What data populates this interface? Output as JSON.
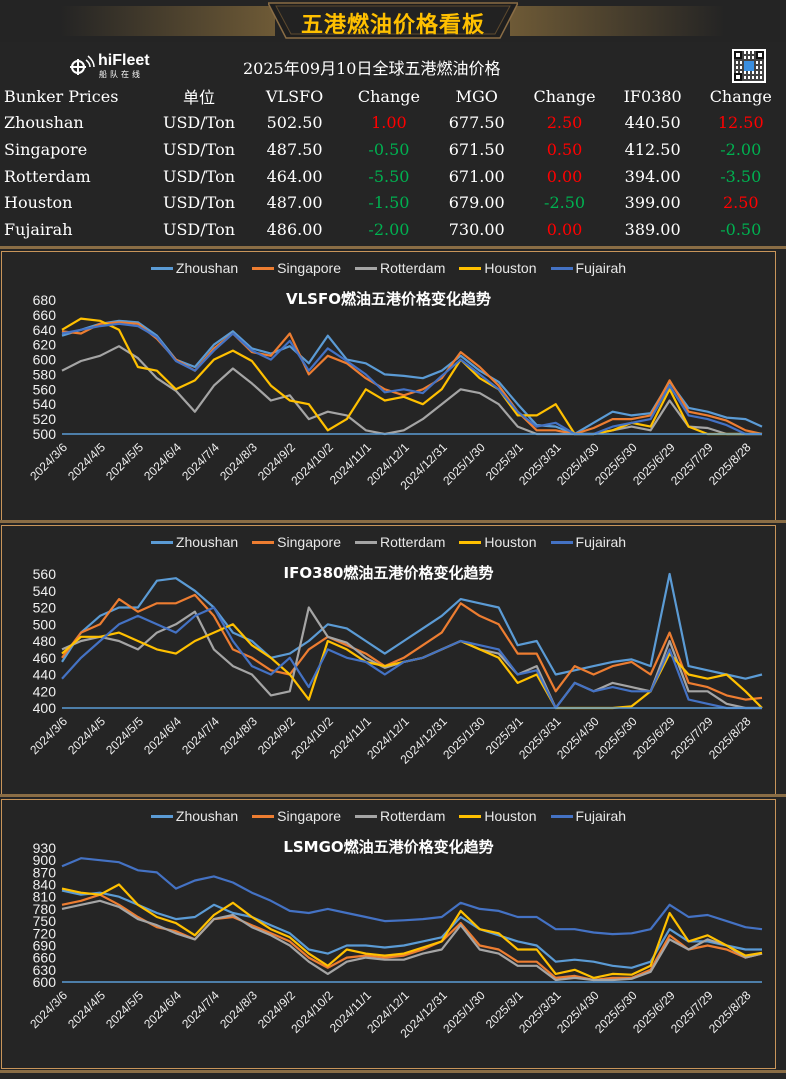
{
  "header": {
    "banner_title": "五港燃油价格看板",
    "logo_main": "hiFleet",
    "logo_sub": "船队在线",
    "date_title": "2025年09月10日全球五港燃油价格"
  },
  "price_table": {
    "headers": [
      "Bunker Prices",
      "单位",
      "VLSFO",
      "Change",
      "MGO",
      "Change",
      "IF0380",
      "Change"
    ],
    "rows": [
      {
        "port": "Zhoushan",
        "unit": "USD/Ton",
        "vlsfo": "502.50",
        "vlsfo_change": "1.00",
        "vlsfo_dir": "up",
        "mgo": "677.50",
        "mgo_change": "2.50",
        "mgo_dir": "up",
        "ifo380": "440.50",
        "ifo380_change": "12.50",
        "ifo380_dir": "up"
      },
      {
        "port": "Singapore",
        "unit": "USD/Ton",
        "vlsfo": "487.50",
        "vlsfo_change": "-0.50",
        "vlsfo_dir": "down",
        "mgo": "671.50",
        "mgo_change": "0.50",
        "mgo_dir": "up",
        "ifo380": "412.50",
        "ifo380_change": "-2.00",
        "ifo380_dir": "down"
      },
      {
        "port": "Rotterdam",
        "unit": "USD/Ton",
        "vlsfo": "464.00",
        "vlsfo_change": "-5.50",
        "vlsfo_dir": "down",
        "mgo": "671.00",
        "mgo_change": "0.00",
        "mgo_dir": "up",
        "ifo380": "394.00",
        "ifo380_change": "-3.50",
        "ifo380_dir": "down"
      },
      {
        "port": "Houston",
        "unit": "USD/Ton",
        "vlsfo": "487.00",
        "vlsfo_change": "-1.50",
        "vlsfo_dir": "down",
        "mgo": "679.00",
        "mgo_change": "-2.50",
        "mgo_dir": "down",
        "ifo380": "399.00",
        "ifo380_change": "2.50",
        "ifo380_dir": "up"
      },
      {
        "port": "Fujairah",
        "unit": "USD/Ton",
        "vlsfo": "486.00",
        "vlsfo_change": "-2.00",
        "vlsfo_dir": "down",
        "mgo": "730.00",
        "mgo_change": "0.00",
        "mgo_dir": "up",
        "ifo380": "389.00",
        "ifo380_change": "-0.50",
        "ifo380_dir": "down"
      }
    ]
  },
  "colors": {
    "Zhoushan": "#5b9bd5",
    "Singapore": "#ed7d31",
    "Rotterdam": "#a5a5a5",
    "Houston": "#ffc000",
    "Fujairah": "#4472c4",
    "up": "#ff0000",
    "down": "#00b050",
    "accent": "#ffc000",
    "border": "#c8955a"
  },
  "chart_data": [
    {
      "type": "line",
      "title": "VLSFO燃油五港价格变化趋势",
      "xlabel": "",
      "ylabel": "",
      "ylim": [
        500,
        680
      ],
      "yticks": [
        500,
        520,
        540,
        560,
        580,
        600,
        620,
        640,
        660,
        680
      ],
      "legend": "top",
      "grid": false,
      "x_unit": "days since 2024/3/6",
      "xlim": [
        0,
        553
      ],
      "xtick_days": [
        0,
        30,
        60,
        90,
        120,
        150,
        180,
        210,
        240,
        270,
        300,
        330,
        360,
        390,
        420,
        450,
        480,
        510,
        540
      ],
      "xtick_labels": [
        "2024/3/6",
        "2024/4/5",
        "2024/5/5",
        "2024/6/4",
        "2024/7/4",
        "2024/8/3",
        "2024/9/2",
        "2024/10/2",
        "2024/11/1",
        "2024/12/1",
        "2024/12/31",
        "2025/1/30",
        "2025/3/1",
        "2025/3/31",
        "2025/4/30",
        "2025/5/30",
        "2025/6/29",
        "2025/7/29",
        "2025/8/28"
      ],
      "x": [
        0,
        15,
        30,
        45,
        60,
        75,
        90,
        105,
        120,
        135,
        150,
        165,
        180,
        195,
        210,
        225,
        240,
        255,
        270,
        285,
        300,
        315,
        330,
        345,
        360,
        375,
        390,
        405,
        420,
        435,
        450,
        465,
        480,
        495,
        510,
        525,
        540,
        553
      ],
      "series": [
        {
          "name": "Zhoushan",
          "values": [
            632,
            640,
            648,
            652,
            650,
            632,
            600,
            590,
            620,
            638,
            615,
            608,
            618,
            595,
            632,
            600,
            595,
            580,
            578,
            575,
            585,
            605,
            585,
            570,
            540,
            512,
            510,
            500,
            515,
            530,
            525,
            528,
            570,
            535,
            530,
            522,
            520,
            510
          ]
        },
        {
          "name": "Singapore",
          "values": [
            638,
            635,
            648,
            650,
            648,
            628,
            600,
            585,
            615,
            635,
            610,
            605,
            635,
            580,
            605,
            595,
            575,
            560,
            552,
            560,
            575,
            610,
            590,
            565,
            530,
            505,
            505,
            500,
            508,
            520,
            520,
            525,
            572,
            530,
            525,
            518,
            505,
            500
          ]
        },
        {
          "name": "Rotterdam",
          "values": [
            585,
            598,
            605,
            618,
            602,
            575,
            558,
            530,
            565,
            588,
            568,
            545,
            552,
            520,
            530,
            525,
            505,
            500,
            505,
            520,
            540,
            560,
            555,
            540,
            510,
            500,
            500,
            500,
            500,
            505,
            510,
            505,
            545,
            510,
            508,
            500,
            500,
            500
          ]
        },
        {
          "name": "Houston",
          "values": [
            640,
            655,
            652,
            640,
            590,
            585,
            560,
            572,
            600,
            612,
            598,
            565,
            545,
            540,
            505,
            520,
            560,
            545,
            550,
            540,
            560,
            600,
            575,
            560,
            525,
            525,
            540,
            500,
            500,
            505,
            515,
            510,
            560,
            510,
            500,
            500,
            500,
            500
          ]
        },
        {
          "name": "Fujairah",
          "values": [
            635,
            640,
            645,
            648,
            645,
            630,
            598,
            585,
            612,
            635,
            612,
            600,
            625,
            585,
            615,
            598,
            580,
            556,
            560,
            555,
            578,
            600,
            580,
            560,
            530,
            510,
            515,
            500,
            500,
            510,
            515,
            520,
            565,
            525,
            520,
            512,
            500,
            500
          ]
        }
      ]
    },
    {
      "type": "line",
      "title": "IFO380燃油五港价格变化趋势",
      "xlabel": "",
      "ylabel": "",
      "ylim": [
        400,
        560
      ],
      "yticks": [
        400,
        420,
        440,
        460,
        480,
        500,
        520,
        540,
        560
      ],
      "legend": "top",
      "grid": false,
      "x_unit": "days since 2024/3/6",
      "xlim": [
        0,
        553
      ],
      "xtick_days": [
        0,
        30,
        60,
        90,
        120,
        150,
        180,
        210,
        240,
        270,
        300,
        330,
        360,
        390,
        420,
        450,
        480,
        510,
        540
      ],
      "xtick_labels": [
        "2024/3/6",
        "2024/4/5",
        "2024/5/5",
        "2024/6/4",
        "2024/7/4",
        "2024/8/3",
        "2024/9/2",
        "2024/10/2",
        "2024/11/1",
        "2024/12/1",
        "2024/12/31",
        "2025/1/30",
        "2025/3/1",
        "2025/3/31",
        "2025/4/30",
        "2025/5/30",
        "2025/6/29",
        "2025/7/29",
        "2025/8/28"
      ],
      "x": [
        0,
        15,
        30,
        45,
        60,
        75,
        90,
        105,
        120,
        135,
        150,
        165,
        180,
        195,
        210,
        225,
        240,
        255,
        270,
        285,
        300,
        315,
        330,
        345,
        360,
        375,
        390,
        405,
        420,
        435,
        450,
        465,
        480,
        495,
        510,
        525,
        540,
        553
      ],
      "series": [
        {
          "name": "Zhoushan",
          "values": [
            455,
            490,
            510,
            520,
            520,
            552,
            555,
            540,
            520,
            490,
            480,
            460,
            465,
            480,
            500,
            495,
            480,
            465,
            480,
            495,
            510,
            530,
            525,
            520,
            475,
            480,
            440,
            445,
            450,
            455,
            458,
            450,
            560,
            450,
            445,
            440,
            435,
            440
          ]
        },
        {
          "name": "Singapore",
          "values": [
            460,
            490,
            500,
            530,
            515,
            525,
            525,
            535,
            510,
            470,
            460,
            445,
            440,
            470,
            485,
            475,
            465,
            450,
            460,
            475,
            490,
            525,
            510,
            500,
            465,
            465,
            420,
            450,
            440,
            450,
            455,
            440,
            490,
            430,
            425,
            415,
            410,
            412
          ]
        },
        {
          "name": "Rotterdam",
          "values": [
            470,
            480,
            485,
            480,
            470,
            490,
            500,
            515,
            470,
            450,
            440,
            415,
            420,
            520,
            485,
            478,
            460,
            448,
            455,
            460,
            470,
            480,
            470,
            465,
            440,
            450,
            400,
            430,
            420,
            430,
            425,
            420,
            480,
            420,
            420,
            405,
            400,
            400
          ]
        },
        {
          "name": "Houston",
          "values": [
            465,
            485,
            485,
            490,
            480,
            470,
            465,
            480,
            490,
            500,
            475,
            460,
            440,
            410,
            480,
            470,
            455,
            450,
            455,
            460,
            470,
            480,
            470,
            460,
            430,
            440,
            400,
            400,
            400,
            400,
            402,
            420,
            465,
            440,
            435,
            440,
            420,
            400
          ]
        },
        {
          "name": "Fujairah",
          "values": [
            435,
            460,
            480,
            500,
            510,
            500,
            490,
            510,
            520,
            480,
            450,
            440,
            460,
            425,
            470,
            460,
            455,
            440,
            455,
            460,
            470,
            480,
            475,
            470,
            440,
            445,
            400,
            430,
            420,
            425,
            420,
            420,
            470,
            410,
            405,
            400,
            400,
            400
          ]
        }
      ]
    },
    {
      "type": "line",
      "title": "LSMGO燃油五港价格变化趋势",
      "xlabel": "",
      "ylabel": "",
      "ylim": [
        600,
        930
      ],
      "yticks": [
        600,
        630,
        660,
        690,
        720,
        750,
        780,
        810,
        840,
        870,
        900,
        930
      ],
      "legend": "top",
      "grid": false,
      "x_unit": "days since 2024/3/6",
      "xlim": [
        0,
        553
      ],
      "xtick_days": [
        0,
        30,
        60,
        90,
        120,
        150,
        180,
        210,
        240,
        270,
        300,
        330,
        360,
        390,
        420,
        450,
        480,
        510,
        540
      ],
      "xtick_labels": [
        "2024/3/6",
        "2024/4/5",
        "2024/5/5",
        "2024/6/4",
        "2024/7/4",
        "2024/8/3",
        "2024/9/2",
        "2024/10/2",
        "2024/11/1",
        "2024/12/1",
        "2024/12/31",
        "2025/1/30",
        "2025/3/1",
        "2025/3/31",
        "2025/4/30",
        "2025/5/30",
        "2025/6/29",
        "2025/7/29",
        "2025/8/28"
      ],
      "x": [
        0,
        15,
        30,
        45,
        60,
        75,
        90,
        105,
        120,
        135,
        150,
        165,
        180,
        195,
        210,
        225,
        240,
        255,
        270,
        285,
        300,
        315,
        330,
        345,
        360,
        375,
        390,
        405,
        420,
        435,
        450,
        465,
        480,
        495,
        510,
        525,
        540,
        553
      ],
      "series": [
        {
          "name": "Zhoushan",
          "values": [
            825,
            815,
            820,
            810,
            790,
            770,
            755,
            760,
            790,
            770,
            760,
            740,
            720,
            680,
            670,
            690,
            690,
            685,
            690,
            700,
            710,
            760,
            730,
            715,
            700,
            690,
            650,
            655,
            650,
            640,
            635,
            650,
            730,
            700,
            700,
            690,
            680,
            680
          ]
        },
        {
          "name": "Singapore",
          "values": [
            790,
            800,
            815,
            790,
            760,
            735,
            725,
            705,
            755,
            760,
            740,
            720,
            700,
            660,
            635,
            660,
            665,
            660,
            665,
            680,
            700,
            745,
            690,
            680,
            650,
            650,
            610,
            615,
            605,
            610,
            610,
            630,
            715,
            680,
            690,
            680,
            660,
            670
          ]
        },
        {
          "name": "Rotterdam",
          "values": [
            780,
            790,
            800,
            785,
            755,
            740,
            720,
            705,
            755,
            765,
            735,
            715,
            690,
            650,
            620,
            650,
            660,
            655,
            655,
            670,
            680,
            740,
            680,
            670,
            640,
            640,
            605,
            610,
            605,
            605,
            608,
            625,
            705,
            680,
            705,
            690,
            660,
            670
          ]
        },
        {
          "name": "Houston",
          "values": [
            830,
            820,
            815,
            840,
            790,
            760,
            745,
            715,
            765,
            795,
            760,
            730,
            710,
            670,
            640,
            680,
            670,
            665,
            670,
            685,
            700,
            775,
            730,
            720,
            680,
            680,
            620,
            630,
            610,
            620,
            618,
            640,
            770,
            700,
            715,
            690,
            665,
            672
          ]
        },
        {
          "name": "Fujairah",
          "values": [
            885,
            905,
            900,
            895,
            875,
            870,
            830,
            850,
            860,
            845,
            820,
            800,
            775,
            770,
            780,
            770,
            760,
            750,
            752,
            755,
            760,
            795,
            780,
            775,
            760,
            760,
            730,
            730,
            722,
            718,
            720,
            730,
            790,
            760,
            765,
            750,
            735,
            730
          ]
        }
      ]
    }
  ]
}
